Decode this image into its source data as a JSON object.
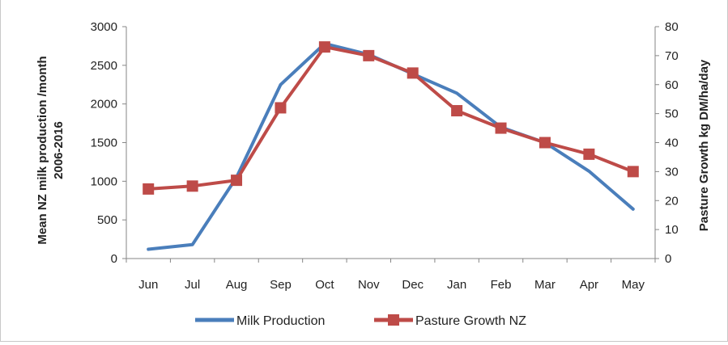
{
  "chart_data": {
    "type": "line",
    "categories": [
      "Jun",
      "Jul",
      "Aug",
      "Sep",
      "Oct",
      "Nov",
      "Dec",
      "Jan",
      "Feb",
      "Mar",
      "Apr",
      "May"
    ],
    "y_left": {
      "label_line1": "Mean NZ milk production /month",
      "label_line2": "2006-2016",
      "ylim": [
        0,
        3000
      ],
      "ticks": [
        "0",
        "500",
        "1000",
        "1500",
        "2000",
        "2500",
        "3000"
      ]
    },
    "y_right": {
      "label": "Pasture Growth kg DM/ha/day",
      "ylim": [
        0,
        80
      ],
      "ticks": [
        "0",
        "10",
        "20",
        "30",
        "40",
        "50",
        "60",
        "70",
        "80"
      ]
    },
    "series": [
      {
        "name": "Milk Production",
        "axis": "left",
        "color": "#4a7ebb",
        "marker": "none",
        "values": [
          120,
          180,
          1050,
          2250,
          2780,
          2640,
          2390,
          2140,
          1700,
          1500,
          1130,
          640
        ]
      },
      {
        "name": "Pasture Growth NZ",
        "axis": "right",
        "color": "#be4b48",
        "marker": "square",
        "values": [
          24,
          25,
          27,
          52,
          73,
          70,
          64,
          51,
          45,
          40,
          36,
          30
        ]
      }
    ],
    "grid": false,
    "legend_position": "bottom"
  }
}
